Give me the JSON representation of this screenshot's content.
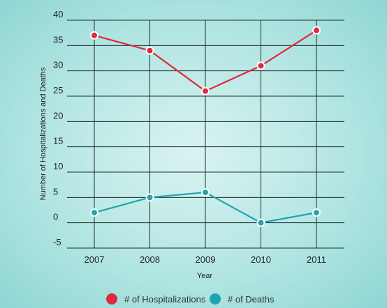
{
  "chart_data": {
    "type": "line",
    "xlabel": "Year",
    "ylabel": "Number of Hospitalizations and Deaths",
    "categories": [
      "2007",
      "2008",
      "2009",
      "2010",
      "2011"
    ],
    "ylim": [
      -5,
      40
    ],
    "yticks": [
      -5,
      0,
      5,
      10,
      15,
      20,
      25,
      30,
      35,
      40
    ],
    "grid": true,
    "legend_position": "bottom-center",
    "series": [
      {
        "name": "# of Hospitalizations",
        "color": "#e0283e",
        "values": [
          37,
          34,
          26,
          31,
          38
        ]
      },
      {
        "name": "# of Deaths",
        "color": "#1fa5ad",
        "values": [
          2,
          5,
          6,
          0,
          2
        ]
      }
    ]
  }
}
